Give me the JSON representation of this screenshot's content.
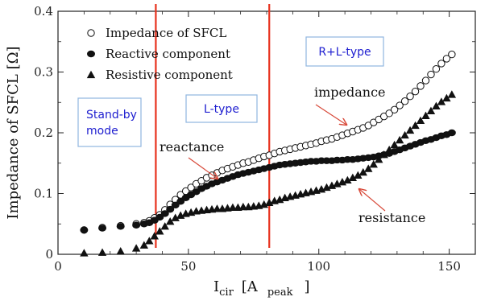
{
  "chart_data": {
    "type": "scatter",
    "xlim": [
      0,
      160
    ],
    "ylim": [
      0,
      0.4
    ],
    "x_ticks": [
      0,
      50,
      100,
      150
    ],
    "y_ticks": [
      0,
      0.1,
      0.2,
      0.3,
      0.4
    ],
    "x_tick_labels": [
      "0",
      "50",
      "100",
      "150"
    ],
    "y_tick_labels": [
      "0",
      "0.1",
      "0.2",
      "0.3",
      "0.4"
    ],
    "ylabel": "Impedance of SFCL  [Ω]",
    "xlabel_main": "I",
    "xlabel_sub": "cir",
    "xlabel_unit_open": "[A",
    "xlabel_unit_sub": "peak",
    "xlabel_unit_close": "]",
    "grid": false,
    "legend_position": "top-left",
    "vertical_lines": [
      {
        "x": 37.5,
        "color": "#e8321e"
      },
      {
        "x": 81,
        "color": "#e8321e"
      }
    ],
    "regions": [
      {
        "label_lines": [
          "Stand-by",
          "mode"
        ],
        "x_center": 18
      },
      {
        "label_lines": [
          "L-type"
        ],
        "x_center": 58
      },
      {
        "label_lines": [
          "R+L-type"
        ],
        "x_center": 105
      }
    ],
    "annotations": [
      {
        "text": "impedance",
        "x": 117,
        "y": 0.23
      },
      {
        "text": "reactance",
        "x": 64,
        "y": 0.155
      },
      {
        "text": "resistance",
        "x": 135,
        "y": 0.046
      }
    ],
    "series": [
      {
        "name": "Impedance of SFCL",
        "marker": "open-circle",
        "x": [
          10,
          17,
          24,
          30,
          33,
          35,
          37,
          39,
          41,
          43,
          45,
          47,
          49,
          51,
          53,
          55,
          57,
          59,
          61,
          63,
          65,
          67,
          69,
          71,
          73,
          75,
          77,
          79,
          81,
          83,
          85,
          87,
          89,
          91,
          93,
          95,
          97,
          99,
          101,
          103,
          105,
          107,
          109,
          111,
          113,
          115,
          117,
          119,
          121,
          123,
          125,
          127,
          129,
          131,
          133,
          135,
          137,
          139,
          141,
          143,
          145,
          147,
          149,
          151
        ],
        "y": [
          0.04,
          0.044,
          0.047,
          0.05,
          0.052,
          0.055,
          0.06,
          0.065,
          0.073,
          0.082,
          0.09,
          0.098,
          0.104,
          0.11,
          0.116,
          0.121,
          0.126,
          0.13,
          0.134,
          0.138,
          0.141,
          0.144,
          0.147,
          0.15,
          0.152,
          0.155,
          0.158,
          0.161,
          0.163,
          0.166,
          0.169,
          0.171,
          0.173,
          0.175,
          0.177,
          0.179,
          0.181,
          0.183,
          0.186,
          0.188,
          0.19,
          0.193,
          0.196,
          0.199,
          0.202,
          0.205,
          0.208,
          0.212,
          0.217,
          0.222,
          0.227,
          0.232,
          0.238,
          0.245,
          0.252,
          0.26,
          0.268,
          0.277,
          0.286,
          0.296,
          0.305,
          0.314,
          0.322,
          0.329
        ]
      },
      {
        "name": "Reactive component",
        "marker": "filled-circle",
        "x": [
          10,
          17,
          24,
          30,
          33,
          35,
          37,
          39,
          41,
          43,
          45,
          47,
          49,
          51,
          53,
          55,
          57,
          59,
          61,
          63,
          65,
          67,
          69,
          71,
          73,
          75,
          77,
          79,
          81,
          83,
          85,
          87,
          89,
          91,
          93,
          95,
          97,
          99,
          101,
          103,
          105,
          107,
          109,
          111,
          113,
          115,
          117,
          119,
          121,
          123,
          125,
          127,
          129,
          131,
          133,
          135,
          137,
          139,
          141,
          143,
          145,
          147,
          149,
          151
        ],
        "y": [
          0.04,
          0.043,
          0.046,
          0.048,
          0.05,
          0.052,
          0.056,
          0.061,
          0.067,
          0.074,
          0.081,
          0.087,
          0.093,
          0.098,
          0.103,
          0.108,
          0.112,
          0.116,
          0.119,
          0.122,
          0.125,
          0.128,
          0.131,
          0.133,
          0.135,
          0.137,
          0.139,
          0.141,
          0.143,
          0.145,
          0.147,
          0.148,
          0.149,
          0.15,
          0.151,
          0.152,
          0.153,
          0.153,
          0.154,
          0.154,
          0.154,
          0.155,
          0.155,
          0.156,
          0.156,
          0.157,
          0.158,
          0.159,
          0.16,
          0.162,
          0.164,
          0.166,
          0.169,
          0.172,
          0.175,
          0.178,
          0.181,
          0.184,
          0.187,
          0.189,
          0.192,
          0.195,
          0.197,
          0.2
        ]
      },
      {
        "name": "Resistive component",
        "marker": "filled-triangle",
        "x": [
          10,
          17,
          24,
          30,
          33,
          35,
          37,
          39,
          41,
          43,
          45,
          47,
          49,
          51,
          53,
          55,
          57,
          59,
          61,
          63,
          65,
          67,
          69,
          71,
          73,
          75,
          77,
          79,
          81,
          83,
          85,
          87,
          89,
          91,
          93,
          95,
          97,
          99,
          101,
          103,
          105,
          107,
          109,
          111,
          113,
          115,
          117,
          119,
          121,
          123,
          125,
          127,
          129,
          131,
          133,
          135,
          137,
          139,
          141,
          143,
          145,
          147,
          149,
          151
        ],
        "y": [
          0.002,
          0.003,
          0.005,
          0.01,
          0.015,
          0.022,
          0.03,
          0.038,
          0.046,
          0.054,
          0.06,
          0.064,
          0.067,
          0.069,
          0.071,
          0.072,
          0.073,
          0.074,
          0.075,
          0.075,
          0.076,
          0.077,
          0.077,
          0.078,
          0.078,
          0.079,
          0.08,
          0.082,
          0.085,
          0.088,
          0.09,
          0.093,
          0.095,
          0.097,
          0.099,
          0.101,
          0.103,
          0.105,
          0.107,
          0.11,
          0.113,
          0.116,
          0.119,
          0.122,
          0.126,
          0.13,
          0.135,
          0.141,
          0.148,
          0.156,
          0.164,
          0.172,
          0.18,
          0.188,
          0.196,
          0.204,
          0.212,
          0.22,
          0.228,
          0.236,
          0.244,
          0.251,
          0.257,
          0.263
        ]
      }
    ]
  }
}
